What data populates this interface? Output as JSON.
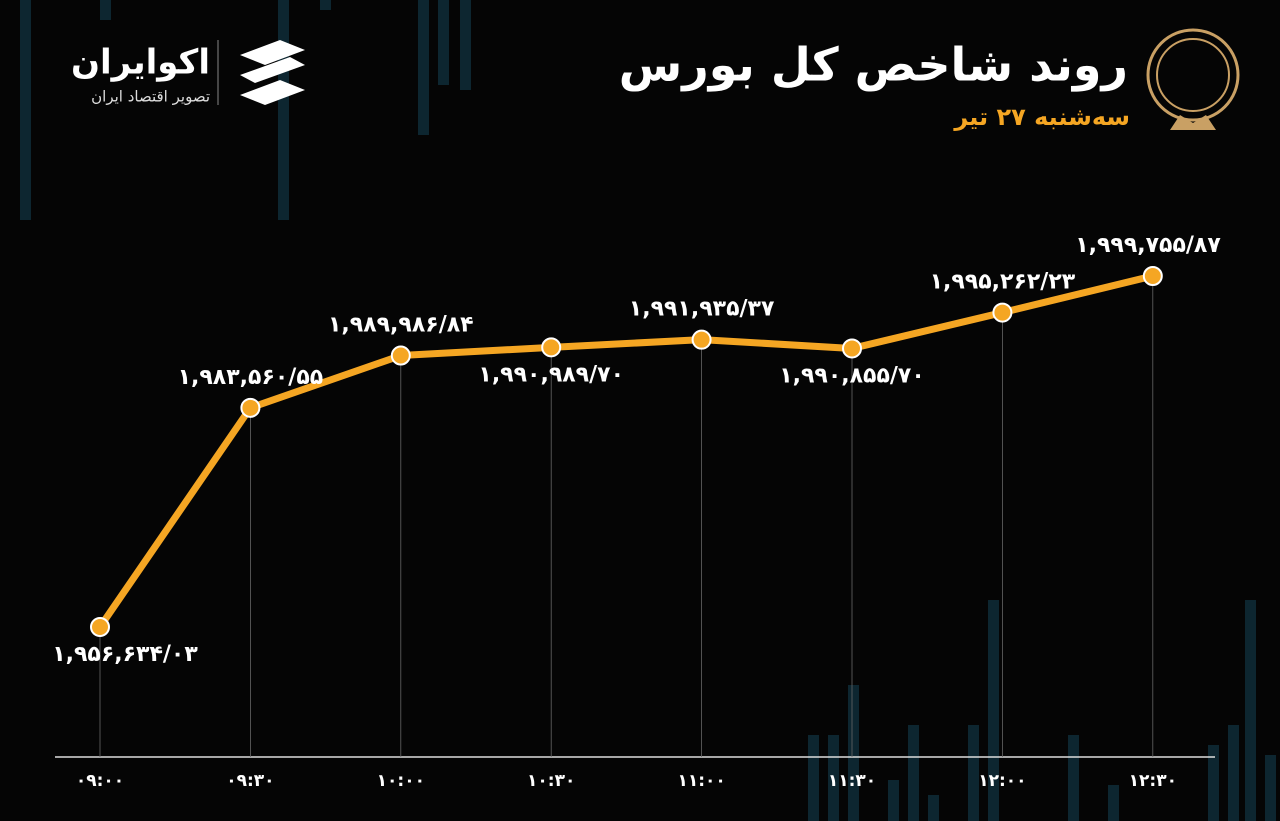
{
  "brand": {
    "name": "اکوایران",
    "tagline": "تصویر اقتصاد ایران"
  },
  "chart_data": {
    "type": "line",
    "title": "روند شاخص کل بورس",
    "subtitle": "سه‌شنبه ۲۷ تیر",
    "categories": [
      "۰۹:۰۰",
      "۰۹:۳۰",
      "۱۰:۰۰",
      "۱۰:۳۰",
      "۱۱:۰۰",
      "۱۱:۳۰",
      "۱۲:۰۰",
      "۱۲:۳۰"
    ],
    "values": [
      1956634.03,
      1983560.55,
      1989986.84,
      1990989.7,
      1991935.37,
      1990855.7,
      1995262.23,
      1999755.87
    ],
    "value_labels": [
      "۱,۹۵۶,۶۳۴/۰۳",
      "۱,۹۸۳,۵۶۰/۵۵",
      "۱,۹۸۹,۹۸۶/۸۴",
      "۱,۹۹۰,۹۸۹/۷۰",
      "۱,۹۹۱,۹۳۵/۳۷",
      "۱,۹۹۰,۸۵۵/۷۰",
      "۱,۹۹۵,۲۶۲/۲۳",
      "۱,۹۹۹,۷۵۵/۸۷"
    ],
    "color": "#f5a623"
  }
}
